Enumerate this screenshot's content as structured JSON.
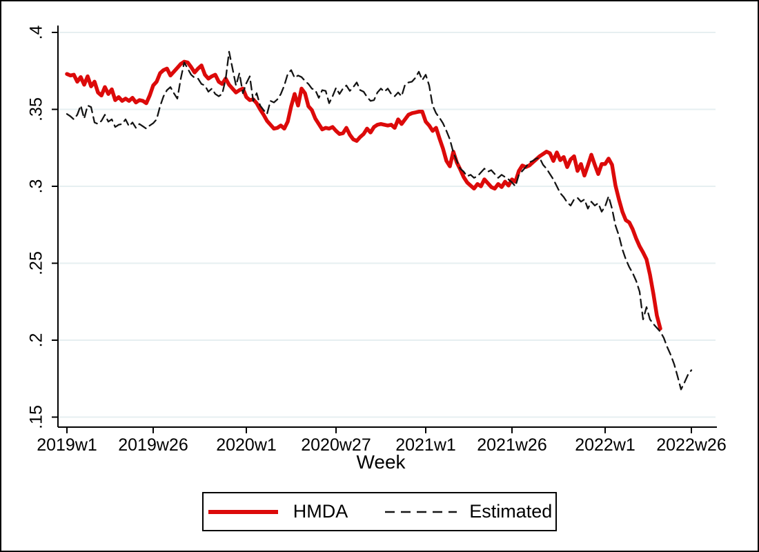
{
  "figure": {
    "background_color": "#ffffff",
    "border_color": "#000000"
  },
  "chart_data": {
    "type": "line",
    "title": "",
    "xlabel": "Week",
    "ylabel": "",
    "x_axis": {
      "tick_labels": [
        "2019w1",
        "2019w26",
        "2020w1",
        "2020w27",
        "2021w1",
        "2021w26",
        "2022w1",
        "2022w26"
      ],
      "tick_week_indices": [
        0,
        25,
        52,
        78,
        104,
        129,
        156,
        181
      ],
      "start_week": "2019w1",
      "end_week_drawn": "2022w26"
    },
    "y_axis": {
      "ticks": [
        0.15,
        0.2,
        0.25,
        0.3,
        0.35,
        0.4
      ],
      "tick_labels": [
        ".15",
        ".2",
        ".25",
        ".3",
        ".35",
        ".4"
      ],
      "range": [
        0.15,
        0.4
      ],
      "grid": true,
      "grid_color": "#e6eff1"
    },
    "legend": {
      "position": "bottom-center",
      "border_color": "#000000"
    },
    "series": [
      {
        "name": "HMDA",
        "color": "#dc0a0a",
        "style": "solid",
        "line_width": 5.5,
        "start_week_index": 0,
        "end_week_label": "2022w17",
        "values": [
          0.373,
          0.372,
          0.3725,
          0.368,
          0.371,
          0.366,
          0.3715,
          0.365,
          0.368,
          0.361,
          0.359,
          0.3645,
          0.36,
          0.363,
          0.356,
          0.358,
          0.3555,
          0.357,
          0.3555,
          0.3575,
          0.3545,
          0.356,
          0.3555,
          0.354,
          0.359,
          0.3655,
          0.368,
          0.3735,
          0.3755,
          0.3765,
          0.372,
          0.3745,
          0.377,
          0.3795,
          0.381,
          0.3805,
          0.3775,
          0.374,
          0.3765,
          0.3785,
          0.3725,
          0.37,
          0.3715,
          0.3725,
          0.368,
          0.3665,
          0.37,
          0.366,
          0.3635,
          0.361,
          0.3625,
          0.3635,
          0.358,
          0.356,
          0.3565,
          0.354,
          0.35,
          0.3465,
          0.3425,
          0.34,
          0.3375,
          0.338,
          0.3395,
          0.3375,
          0.342,
          0.352,
          0.36,
          0.3525,
          0.3635,
          0.3605,
          0.352,
          0.3495,
          0.344,
          0.3405,
          0.337,
          0.338,
          0.3375,
          0.3385,
          0.336,
          0.334,
          0.3345,
          0.338,
          0.3335,
          0.3305,
          0.3295,
          0.332,
          0.334,
          0.3375,
          0.335,
          0.3385,
          0.34,
          0.3405,
          0.34,
          0.3395,
          0.34,
          0.338,
          0.3435,
          0.3405,
          0.3435,
          0.3465,
          0.3475,
          0.348,
          0.3485,
          0.3485,
          0.342,
          0.3395,
          0.336,
          0.338,
          0.331,
          0.3245,
          0.3165,
          0.313,
          0.3225,
          0.3155,
          0.311,
          0.306,
          0.3025,
          0.3005,
          0.2985,
          0.3015,
          0.3,
          0.3045,
          0.302,
          0.2995,
          0.2985,
          0.3015,
          0.2995,
          0.303,
          0.3005,
          0.3045,
          0.303,
          0.31,
          0.3135,
          0.3125,
          0.3135,
          0.3155,
          0.3175,
          0.3195,
          0.321,
          0.3225,
          0.3215,
          0.3165,
          0.322,
          0.317,
          0.319,
          0.3125,
          0.3175,
          0.3195,
          0.31,
          0.3145,
          0.307,
          0.3135,
          0.3205,
          0.314,
          0.308,
          0.3145,
          0.3145,
          0.318,
          0.314,
          0.3005,
          0.2915,
          0.2835,
          0.278,
          0.2765,
          0.272,
          0.266,
          0.261,
          0.257,
          0.2525,
          0.2425,
          0.23,
          0.216,
          0.2075
        ]
      },
      {
        "name": "Estimated",
        "color": "#141414",
        "style": "dashed",
        "line_width": 2.3,
        "start_week_index": 0,
        "end_week_label": "2022w26",
        "values": [
          0.347,
          0.3455,
          0.3435,
          0.3465,
          0.3525,
          0.344,
          0.3525,
          0.3515,
          0.3415,
          0.3405,
          0.3425,
          0.3465,
          0.342,
          0.3435,
          0.3385,
          0.34,
          0.3405,
          0.3435,
          0.339,
          0.3415,
          0.338,
          0.3405,
          0.339,
          0.3375,
          0.3395,
          0.341,
          0.3435,
          0.352,
          0.3585,
          0.3625,
          0.3645,
          0.3605,
          0.357,
          0.37,
          0.3805,
          0.3765,
          0.3725,
          0.3705,
          0.37,
          0.3665,
          0.3655,
          0.3615,
          0.3635,
          0.36,
          0.3585,
          0.36,
          0.3695,
          0.3875,
          0.3765,
          0.3655,
          0.3735,
          0.3605,
          0.367,
          0.3715,
          0.3555,
          0.3605,
          0.3525,
          0.3495,
          0.347,
          0.3555,
          0.3545,
          0.3565,
          0.36,
          0.3655,
          0.373,
          0.3755,
          0.3705,
          0.372,
          0.371,
          0.3685,
          0.3665,
          0.3635,
          0.3625,
          0.3575,
          0.3625,
          0.362,
          0.354,
          0.3585,
          0.364,
          0.36,
          0.3635,
          0.3655,
          0.362,
          0.3645,
          0.3675,
          0.3625,
          0.3615,
          0.358,
          0.3555,
          0.356,
          0.361,
          0.3635,
          0.3615,
          0.3635,
          0.36,
          0.3585,
          0.361,
          0.3585,
          0.366,
          0.3675,
          0.368,
          0.3705,
          0.3745,
          0.369,
          0.3725,
          0.3655,
          0.3525,
          0.3475,
          0.3445,
          0.341,
          0.336,
          0.3305,
          0.322,
          0.3165,
          0.3115,
          0.3095,
          0.3065,
          0.3075,
          0.3055,
          0.3065,
          0.309,
          0.3115,
          0.3095,
          0.3105,
          0.308,
          0.3055,
          0.3075,
          0.306,
          0.3045,
          0.3025,
          0.3,
          0.3075,
          0.31,
          0.3125,
          0.3155,
          0.3165,
          0.318,
          0.3185,
          0.314,
          0.3115,
          0.308,
          0.3045,
          0.3,
          0.2955,
          0.293,
          0.2895,
          0.2875,
          0.2915,
          0.2925,
          0.29,
          0.2915,
          0.2855,
          0.29,
          0.2875,
          0.289,
          0.2835,
          0.287,
          0.2935,
          0.2855,
          0.2745,
          0.268,
          0.259,
          0.2525,
          0.2475,
          0.2435,
          0.2385,
          0.2315,
          0.2135,
          0.2215,
          0.2135,
          0.2105,
          0.208,
          0.2055,
          0.2015,
          0.1955,
          0.1905,
          0.1845,
          0.1765,
          0.168,
          0.1725,
          0.1775,
          0.1805
        ]
      }
    ]
  }
}
